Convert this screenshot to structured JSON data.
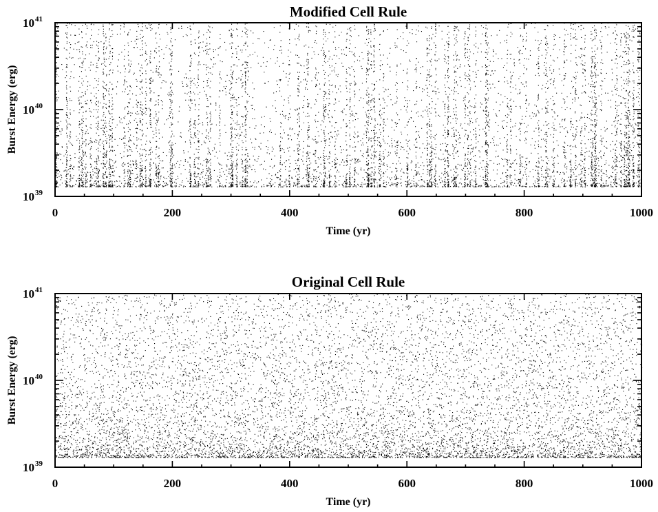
{
  "chart_data": [
    {
      "type": "scatter",
      "title": "Modified Cell Rule",
      "xlabel": "Time (yr)",
      "ylabel": "Burst Energy (erg)",
      "xlim": [
        0,
        1000
      ],
      "ylim": [
        1e+39,
        1e+41
      ],
      "yscale": "log",
      "xticks": [
        0,
        200,
        400,
        600,
        800,
        1000
      ],
      "xtick_labels": [
        "0",
        "200",
        "400",
        "600",
        "800",
        "1000"
      ],
      "yticks": [
        {
          "value": 1e+39,
          "base": "10",
          "exp": "39"
        },
        {
          "value": 1e+40,
          "base": "10",
          "exp": "40"
        },
        {
          "value": 1e+41,
          "base": "10",
          "exp": "41"
        }
      ],
      "grid": false,
      "marker_color": "#000000",
      "pattern": "clustered",
      "points_shown": 9000,
      "min_energy": 1.3e+39,
      "max_energy": 1e+41
    },
    {
      "type": "scatter",
      "title": "Original Cell Rule",
      "xlabel": "Time (yr)",
      "ylabel": "Burst Energy (erg)",
      "xlim": [
        0,
        1000
      ],
      "ylim": [
        1e+39,
        1e+41
      ],
      "yscale": "log",
      "xticks": [
        0,
        200,
        400,
        600,
        800,
        1000
      ],
      "xtick_labels": [
        "0",
        "200",
        "400",
        "600",
        "800",
        "1000"
      ],
      "yticks": [
        {
          "value": 1e+39,
          "base": "10",
          "exp": "39"
        },
        {
          "value": 1e+40,
          "base": "10",
          "exp": "40"
        },
        {
          "value": 1e+41,
          "base": "10",
          "exp": "41"
        }
      ],
      "grid": false,
      "marker_color": "#000000",
      "pattern": "uniform",
      "points_shown": 9000,
      "min_energy": 1.3e+39,
      "max_energy": 1e+41
    }
  ]
}
